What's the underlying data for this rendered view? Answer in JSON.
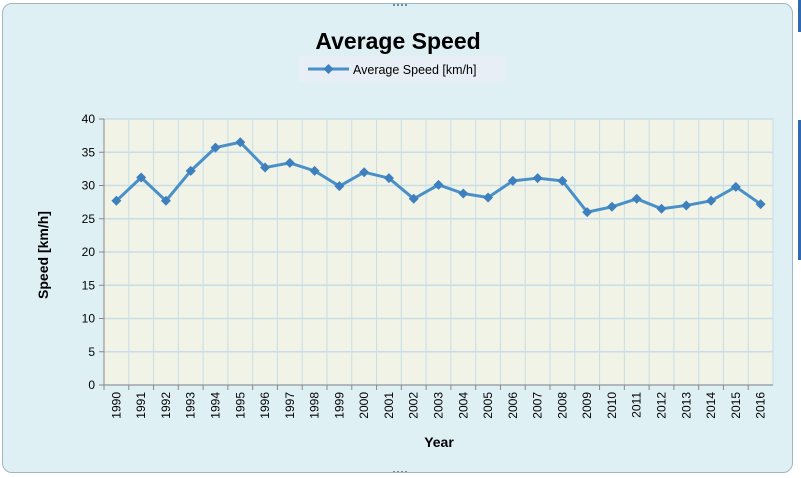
{
  "chart_data": {
    "type": "line",
    "title": "Average Speed",
    "xlabel": "Year",
    "ylabel": "Speed [km/h]",
    "categories": [
      "1990",
      "1991",
      "1992",
      "1993",
      "1994",
      "1995",
      "1996",
      "1997",
      "1998",
      "1999",
      "2000",
      "2001",
      "2002",
      "2003",
      "2004",
      "2005",
      "2006",
      "2007",
      "2008",
      "2009",
      "2010",
      "2011",
      "2012",
      "2013",
      "2014",
      "2015",
      "2016"
    ],
    "series": [
      {
        "name": "Average Speed [km/h]",
        "values": [
          27.7,
          31.2,
          27.7,
          32.2,
          35.7,
          36.5,
          32.7,
          33.4,
          32.2,
          29.9,
          32.0,
          31.1,
          28.0,
          30.1,
          28.8,
          28.2,
          30.7,
          31.1,
          30.7,
          26.0,
          26.8,
          28.0,
          26.5,
          27.0,
          27.7,
          29.8,
          27.2
        ]
      }
    ],
    "ylim": [
      0,
      40
    ],
    "yticks": [
      "0",
      "5",
      "10",
      "15",
      "20",
      "25",
      "30",
      "35",
      "40"
    ],
    "grid": true,
    "legend_position": "top-center",
    "colors": {
      "line": "#4a90c8",
      "marker": "#3d80bd",
      "plot_background": "#f0f3e6",
      "chart_background": "#dff0f5",
      "gridline": "#c8dde8"
    }
  }
}
